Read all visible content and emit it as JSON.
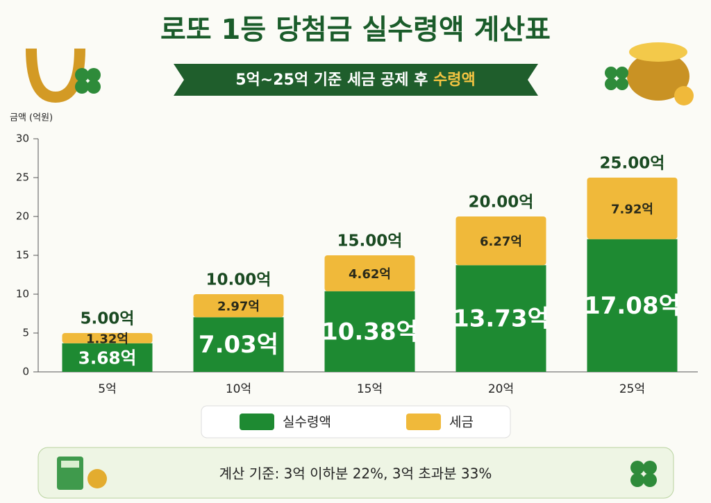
{
  "chart_data": {
    "type": "stacked_bar",
    "title": "로또 1등 당첨금 실수령액 계산표",
    "subtitle": "5억~25억 기준 세금 공제 후",
    "subtitle_highlight": "수령액",
    "ylabel": "금액 (억원)",
    "categories": [
      "5억",
      "10억",
      "15억",
      "20억",
      "25억"
    ],
    "series": [
      {
        "name": "실수령액",
        "color": "#1e8a32",
        "values": [
          3.68,
          7.03,
          10.38,
          13.73,
          17.08
        ],
        "value_labels": [
          "3.68억",
          "7.03억",
          "10.38억",
          "13.73억",
          "17.08억"
        ]
      },
      {
        "name": "세금",
        "color": "#f0b93a",
        "values": [
          1.32,
          2.97,
          4.62,
          6.27,
          7.92
        ],
        "value_labels": [
          "1.32억",
          "2.97억",
          "4.62억",
          "6.27억",
          "7.92억"
        ]
      }
    ],
    "totals": {
      "values": [
        5,
        10,
        15,
        20,
        25
      ],
      "value_labels": [
        "5.00억",
        "10.00억",
        "15.00억",
        "20.00억",
        "25.00억"
      ]
    },
    "ylim": [
      0,
      30
    ],
    "yticks": [
      0,
      5,
      10,
      15,
      20,
      25,
      30
    ],
    "note": "계산 기준:  3억 이하분 22%, 3억 초과분 33%"
  }
}
